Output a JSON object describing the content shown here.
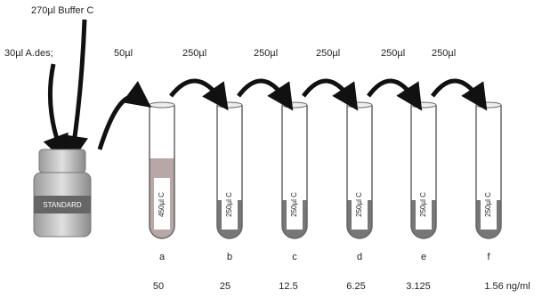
{
  "labels": {
    "buffer": "270µl Buffer C",
    "standard_input": "30µl A.des;",
    "bottle": "STANDARD"
  },
  "transfers": [
    "50µl",
    "250µl",
    "250µl",
    "250µl",
    "250µl",
    "250µl"
  ],
  "tubes": [
    {
      "letter": "a",
      "volume": "450µl C",
      "concentration": "50"
    },
    {
      "letter": "b",
      "volume": "250µl C",
      "concentration": "25"
    },
    {
      "letter": "c",
      "volume": "250µl C",
      "concentration": "12.5"
    },
    {
      "letter": "d",
      "volume": "250µl C",
      "concentration": "6.25"
    },
    {
      "letter": "e",
      "volume": "250µl C",
      "concentration": "3.125"
    },
    {
      "letter": "f",
      "volume": "250µl C",
      "concentration": "1.56 ng/ml"
    }
  ]
}
